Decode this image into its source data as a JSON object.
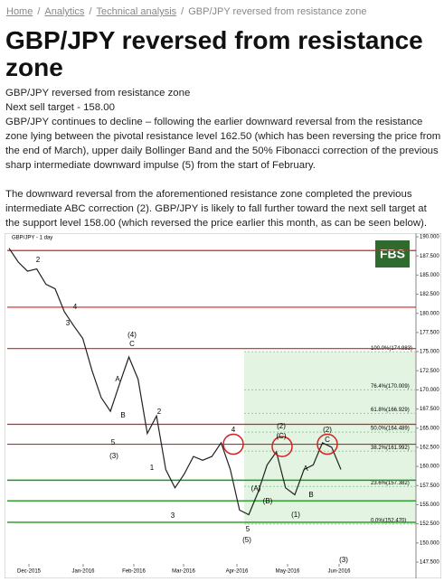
{
  "breadcrumb": {
    "items": [
      "Home",
      "Analytics",
      "Technical analysis",
      "GBP/JPY reversed from resistance zone"
    ],
    "separator": "/"
  },
  "title": "GBP/JPY reversed from resistance zone",
  "paragraphs": [
    "GBP/JPY reversed from resistance zone",
    "Next sell target - 158.00",
    "GBP/JPY continues to decline – following the earlier downward reversal from the resistance zone lying between the pivotal resistance level 162.50 (which has been reversing the price from the end of March), upper daily Bollinger Band and the 50% Fibonacci correction of the previous sharp intermediate downward impulse (5) from the start of February.",
    "The downward reversal from the aforementioned resistance zone completed the previous intermediate ABC correction (2). GBP/JPY is likely to fall further toward the next sell target at the support level 158.00 (which reversed the price earlier this month, as can be seen below)."
  ],
  "chart_data": {
    "type": "line",
    "title": "GBP/JPY - 1 day",
    "logo": "FBS",
    "values": [
      188.5,
      186.7,
      185.5,
      185.8,
      183.8,
      183.2,
      180.2,
      178.4,
      176.7,
      172.5,
      169.0,
      167.2,
      170.8,
      174.3,
      171.4,
      164.3,
      166.6,
      159.6,
      157.2,
      159.0,
      161.3,
      160.8,
      161.3,
      163.1,
      159.6,
      154.3,
      153.7,
      156.6,
      160.2,
      161.9,
      157.2,
      156.3,
      159.6,
      160.2,
      163.1,
      162.5,
      159.6
    ],
    "color": "#222222",
    "ylim": [
      147.5,
      190
    ],
    "yticks": [
      {
        "value": 190,
        "label": "190.000"
      },
      {
        "value": 187.5,
        "label": "187.500"
      },
      {
        "value": 185,
        "label": "185.000"
      },
      {
        "value": 182.5,
        "label": "182.500"
      },
      {
        "value": 180,
        "label": "180.000"
      },
      {
        "value": 177.5,
        "label": "177.500"
      },
      {
        "value": 175,
        "label": "175.000"
      },
      {
        "value": 172.5,
        "label": "172.500"
      },
      {
        "value": 170,
        "label": "170.000"
      },
      {
        "value": 167.5,
        "label": "167.500"
      },
      {
        "value": 165,
        "label": "165.000"
      },
      {
        "value": 162.5,
        "label": "162.500"
      },
      {
        "value": 160,
        "label": "160.000"
      },
      {
        "value": 157.5,
        "label": "157.500"
      },
      {
        "value": 155,
        "label": "155.000"
      },
      {
        "value": 152.5,
        "label": "152.500"
      },
      {
        "value": 150,
        "label": "150.000"
      },
      {
        "value": 147.5,
        "label": "147.500"
      }
    ],
    "xlabels": [
      "Dec-2015",
      "Jan-2016",
      "Feb-2016",
      "Mar-2016",
      "Apr-2016",
      "May-2016",
      "Jun-2016"
    ],
    "resistance_levels": [
      188.2,
      180.8,
      175.4,
      165.5,
      162.9
    ],
    "resistance_color": "#d42020",
    "support_levels": [
      158.2,
      155.5,
      152.7
    ],
    "support_color": "#1a9a1a",
    "fibonacci": [
      {
        "value": 174.983,
        "label": "100.0%(174.983)"
      },
      {
        "value": 170.009,
        "label": "76.4%(170.009)"
      },
      {
        "value": 166.929,
        "label": "61.8%(166.929)"
      },
      {
        "value": 164.489,
        "label": "50.0%(164.489)"
      },
      {
        "value": 161.992,
        "label": "38.2%(161.992)"
      },
      {
        "value": 157.382,
        "label": "23.6%(157.382)"
      },
      {
        "value": 152.47,
        "label": "0.0%(152.470)"
      }
    ],
    "wave_labels": [
      "2",
      "3",
      "4",
      "(4)",
      "C",
      "A",
      "B",
      "5",
      "(3)",
      "2",
      "1",
      "3",
      "4",
      "5",
      "(5)",
      "(A)",
      "(B)",
      "(2)",
      "(C)",
      "(1)",
      "A",
      "B",
      "(2)",
      "C",
      "(3)"
    ]
  }
}
